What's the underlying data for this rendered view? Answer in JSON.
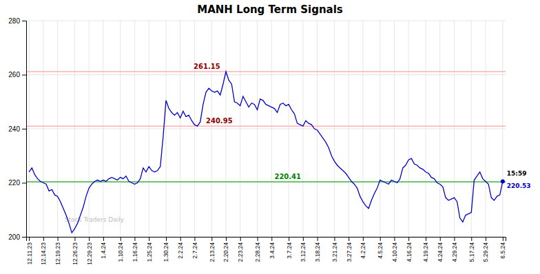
{
  "chart_data": {
    "type": "line",
    "title": "MANH Long Term Signals",
    "watermark": "Stock Traders Daily",
    "color": "#0000cc",
    "grid": true,
    "ylim": [
      200,
      280
    ],
    "yticks": [
      200,
      220,
      240,
      260,
      280
    ],
    "categories": [
      "12.11.23",
      null,
      null,
      null,
      null,
      "12.14.23",
      null,
      null,
      null,
      null,
      "12.19.23",
      null,
      null,
      null,
      null,
      null,
      "12.26.23",
      null,
      null,
      null,
      null,
      "12.29.23",
      null,
      null,
      null,
      null,
      "1.4.24",
      null,
      null,
      null,
      null,
      null,
      "1.10.24",
      null,
      null,
      null,
      null,
      "1.16.24",
      null,
      null,
      null,
      null,
      "1.25.24",
      null,
      null,
      null,
      null,
      null,
      "1.30.24",
      null,
      null,
      null,
      null,
      "2.2.24",
      null,
      null,
      null,
      null,
      "2.7.24",
      null,
      null,
      null,
      null,
      null,
      "2.13.24",
      null,
      null,
      null,
      null,
      "2.20.24",
      null,
      null,
      null,
      null,
      "2.23.24",
      null,
      null,
      null,
      null,
      null,
      "2.28.24",
      null,
      null,
      null,
      null,
      "3.4.24",
      null,
      null,
      null,
      null,
      null,
      "3.7.24",
      null,
      null,
      null,
      null,
      "3.12.24",
      null,
      null,
      null,
      null,
      "3.18.24",
      null,
      null,
      null,
      null,
      null,
      "3.21.24",
      null,
      null,
      null,
      null,
      "3.27.24",
      null,
      null,
      null,
      null,
      "4.2.24",
      null,
      null,
      null,
      null,
      null,
      "4.5.24",
      null,
      null,
      null,
      null,
      "4.10.24",
      null,
      null,
      null,
      null,
      "4.16.24",
      null,
      null,
      null,
      null,
      null,
      "4.19.24",
      null,
      null,
      null,
      null,
      "4.24.24",
      null,
      null,
      null,
      null,
      "4.29.24",
      null,
      null,
      null,
      null,
      null,
      "5.17.24",
      null,
      null,
      null,
      null,
      "5.29.24",
      null,
      null,
      null,
      null,
      null,
      "6.5.24"
    ],
    "values": [
      224.0,
      225.5,
      223.0,
      221.5,
      220.5,
      220.0,
      219.5,
      217.0,
      217.5,
      215.5,
      215.0,
      213.0,
      210.5,
      208.0,
      205.0,
      201.5,
      203.0,
      205.0,
      208.0,
      211.0,
      215.0,
      218.0,
      219.5,
      220.5,
      221.0,
      220.5,
      221.0,
      220.5,
      221.5,
      222.0,
      221.5,
      221.0,
      222.0,
      221.5,
      222.5,
      220.5,
      220.0,
      219.5,
      220.0,
      221.5,
      225.5,
      224.0,
      226.0,
      224.5,
      224.0,
      224.5,
      226.0,
      237.0,
      250.5,
      247.5,
      246.0,
      245.0,
      246.0,
      244.0,
      246.5,
      244.5,
      245.0,
      243.0,
      241.5,
      241.0,
      242.5,
      249.0,
      253.5,
      255.0,
      254.0,
      253.5,
      254.0,
      252.5,
      256.5,
      261.15,
      258.0,
      256.5,
      250.0,
      249.5,
      248.5,
      252.0,
      250.0,
      248.0,
      249.5,
      249.0,
      247.0,
      251.0,
      250.5,
      249.0,
      248.5,
      248.0,
      247.5,
      246.0,
      249.0,
      249.5,
      248.5,
      249.0,
      247.0,
      245.5,
      242.0,
      241.5,
      241.0,
      243.0,
      242.0,
      241.5,
      240.0,
      239.5,
      238.0,
      236.5,
      235.0,
      233.0,
      230.0,
      228.0,
      226.5,
      225.5,
      224.5,
      223.5,
      222.0,
      220.5,
      219.5,
      218.0,
      215.0,
      213.0,
      211.5,
      210.5,
      213.5,
      216.0,
      218.0,
      221.0,
      220.5,
      220.0,
      219.5,
      221.0,
      220.5,
      220.0,
      221.5,
      225.5,
      226.5,
      228.5,
      229.0,
      227.0,
      226.5,
      225.5,
      225.0,
      224.0,
      223.5,
      222.0,
      221.5,
      220.0,
      219.5,
      218.5,
      214.5,
      213.5,
      214.0,
      214.5,
      213.0,
      207.0,
      205.5,
      208.0,
      208.5,
      209.0,
      221.0,
      222.5,
      224.0,
      221.5,
      220.5,
      219.5,
      214.5,
      213.5,
      215.0,
      215.5,
      220.53
    ],
    "hlines": [
      {
        "value": 220.41,
        "label": "220.41",
        "color": "#44bb44",
        "label_color": "#008000"
      },
      {
        "value": 261.15,
        "label": "261.15",
        "color": "#ffb0b0",
        "label_color": "#8b0000"
      },
      {
        "value": 240.95,
        "label": "240.95",
        "color": "#ffb0b0",
        "label_color": "#8b0000"
      }
    ],
    "end_marker": {
      "time": "15:59",
      "value": 220.53,
      "label": "220.53",
      "color": "#0000cc",
      "time_color": "#000000"
    }
  }
}
